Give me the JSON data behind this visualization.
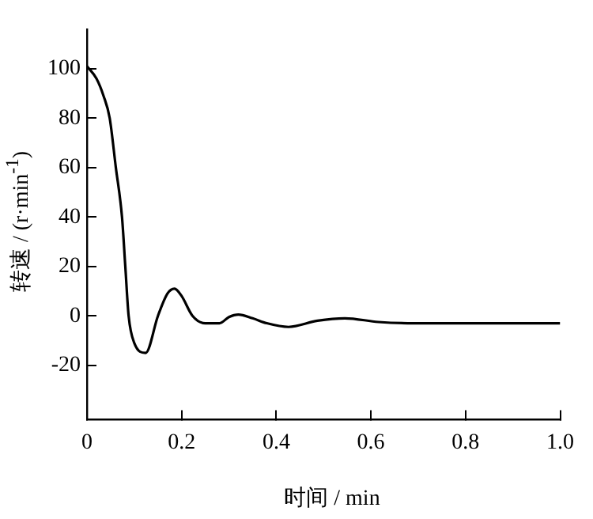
{
  "chart_data": {
    "type": "line",
    "xlabel": "时间 / min",
    "ylabel": "转速 / (r·min$^{-1}$)",
    "x": [
      0,
      0.02,
      0.035,
      0.048,
      0.061,
      0.074,
      0.081,
      0.088,
      0.1,
      0.124,
      0.15,
      0.17,
      0.185,
      0.2,
      0.223,
      0.25,
      0.28,
      0.3,
      0.32,
      0.35,
      0.38,
      0.426,
      0.487,
      0.545,
      0.616,
      0.69,
      0.8,
      0.9,
      1.0
    ],
    "series": [
      {
        "color": "#000000",
        "values": [
          101,
          96,
          89,
          80,
          60,
          40,
          20,
          0,
          -11,
          -15,
          0,
          9,
          11,
          8,
          0,
          -3,
          -3,
          -0.5,
          0.5,
          -1,
          -3,
          -4.5,
          -2,
          -1,
          -2.5,
          -3,
          -3,
          -3,
          -3
        ]
      }
    ],
    "xlim": [
      0,
      1
    ],
    "ylim": [
      -42,
      116
    ],
    "xticks": [
      0,
      0.2,
      0.4,
      0.6,
      0.8,
      {
        "value": 1,
        "label": "1.0"
      }
    ],
    "yticks": [
      -20,
      0,
      20,
      40,
      60,
      80,
      100
    ],
    "grid": false,
    "legend": false,
    "marker": "none",
    "line_style": "solid"
  }
}
